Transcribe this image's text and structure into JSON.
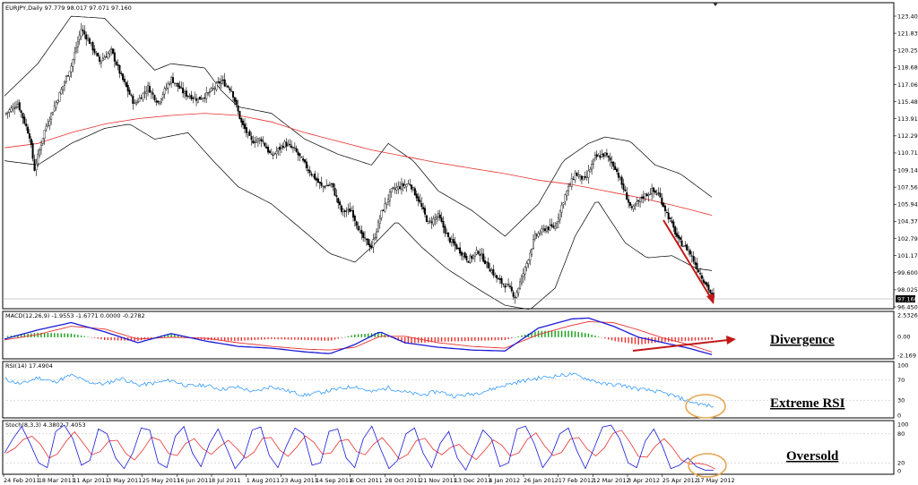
{
  "chart_data": {
    "type": "candlestick",
    "window_title": "EURJPY,Daily  97.779 98.017 97.071 97.160",
    "current_price_label": "97.160",
    "price_axis_ticks": [
      "123.405",
      "121.830",
      "120.255",
      "118.680",
      "117.060",
      "115.485",
      "113.910",
      "112.290",
      "110.715",
      "109.140",
      "107.565",
      "105.945",
      "104.370",
      "102.795",
      "101.175",
      "99.600",
      "98.025",
      "96.450"
    ],
    "price_range": [
      96.45,
      123.405
    ],
    "x_ticks": [
      "24 Feb 2011",
      "18 Mar 2011",
      "11 Apr 2011",
      "3 May 2011",
      "25 May 2011",
      "16 Jun 2011",
      "8 Jul 2011",
      "1 Aug 2011",
      "23 Aug 2011",
      "14 Sep 2011",
      "6 Oct 2011",
      "28 Oct 2011",
      "21 Nov 2011",
      "13 Dec 2011",
      "4 Jan 2012",
      "26 Jan 2012",
      "17 Feb 2012",
      "12 Mar 2012",
      "3 Apr 2012",
      "25 Apr 2012",
      "17 May 2012"
    ],
    "close_path": [
      [
        0,
        114.3
      ],
      [
        8,
        115.3
      ],
      [
        15,
        112.3
      ],
      [
        18,
        109.2
      ],
      [
        24,
        112.8
      ],
      [
        32,
        115.8
      ],
      [
        40,
        118.8
      ],
      [
        46,
        122.2
      ],
      [
        51,
        121.0
      ],
      [
        57,
        119.2
      ],
      [
        64,
        120.2
      ],
      [
        70,
        117.8
      ],
      [
        78,
        115.2
      ],
      [
        86,
        116.8
      ],
      [
        92,
        115.4
      ],
      [
        100,
        117.6
      ],
      [
        108,
        116.2
      ],
      [
        116,
        115.7
      ],
      [
        122,
        116.2
      ],
      [
        130,
        117.4
      ],
      [
        136,
        116.6
      ],
      [
        142,
        113.5
      ],
      [
        148,
        111.8
      ],
      [
        154,
        112.0
      ],
      [
        160,
        110.4
      ],
      [
        168,
        111.6
      ],
      [
        174,
        111.0
      ],
      [
        182,
        109.2
      ],
      [
        190,
        107.6
      ],
      [
        196,
        107.8
      ],
      [
        202,
        105.3
      ],
      [
        208,
        105.4
      ],
      [
        214,
        103.0
      ],
      [
        220,
        102.0
      ],
      [
        226,
        105.2
      ],
      [
        232,
        107.2
      ],
      [
        237,
        107.6
      ],
      [
        243,
        107.9
      ],
      [
        248,
        106.4
      ],
      [
        254,
        104.2
      ],
      [
        260,
        104.9
      ],
      [
        266,
        102.8
      ],
      [
        272,
        101.8
      ],
      [
        278,
        100.8
      ],
      [
        284,
        101.6
      ],
      [
        290,
        100.2
      ],
      [
        296,
        98.9
      ],
      [
        302,
        98.3
      ],
      [
        306,
        97.4
      ],
      [
        312,
        100.0
      ],
      [
        318,
        103.0
      ],
      [
        324,
        103.7
      ],
      [
        330,
        103.9
      ],
      [
        336,
        106.8
      ],
      [
        342,
        108.8
      ],
      [
        348,
        108.2
      ],
      [
        354,
        110.3
      ],
      [
        360,
        110.6
      ],
      [
        366,
        109.4
      ],
      [
        372,
        107.0
      ],
      [
        376,
        105.4
      ],
      [
        382,
        106.6
      ],
      [
        388,
        107.2
      ],
      [
        392,
        106.9
      ],
      [
        398,
        104.8
      ],
      [
        404,
        102.6
      ],
      [
        410,
        101.7
      ],
      [
        416,
        99.8
      ],
      [
        421,
        98.4
      ],
      [
        425,
        97.16
      ]
    ],
    "sma_path": [
      [
        0,
        111.2
      ],
      [
        20,
        111.6
      ],
      [
        40,
        112.6
      ],
      [
        60,
        113.4
      ],
      [
        80,
        113.9
      ],
      [
        100,
        114.2
      ],
      [
        120,
        114.4
      ],
      [
        140,
        114.2
      ],
      [
        160,
        113.6
      ],
      [
        180,
        112.6
      ],
      [
        200,
        111.8
      ],
      [
        220,
        111.0
      ],
      [
        240,
        110.4
      ],
      [
        260,
        109.8
      ],
      [
        280,
        109.3
      ],
      [
        300,
        108.8
      ],
      [
        320,
        108.2
      ],
      [
        340,
        107.8
      ],
      [
        360,
        107.2
      ],
      [
        380,
        106.6
      ],
      [
        400,
        105.9
      ],
      [
        425,
        104.9
      ]
    ],
    "bb_upper": [
      [
        0,
        116.0
      ],
      [
        20,
        119.0
      ],
      [
        40,
        123.4
      ],
      [
        60,
        123.2
      ],
      [
        80,
        120.0
      ],
      [
        90,
        118.4
      ],
      [
        100,
        119.0
      ],
      [
        120,
        118.6
      ],
      [
        130,
        116.5
      ],
      [
        140,
        115.0
      ],
      [
        160,
        114.4
      ],
      [
        180,
        112.0
      ],
      [
        200,
        110.6
      ],
      [
        220,
        109.6
      ],
      [
        230,
        111.6
      ],
      [
        245,
        110.0
      ],
      [
        260,
        107.2
      ],
      [
        280,
        105.4
      ],
      [
        300,
        103.0
      ],
      [
        320,
        106.0
      ],
      [
        335,
        110.0
      ],
      [
        350,
        111.6
      ],
      [
        360,
        112.2
      ],
      [
        375,
        111.8
      ],
      [
        390,
        109.6
      ],
      [
        405,
        108.8
      ],
      [
        425,
        106.5
      ]
    ],
    "bb_lower": [
      [
        0,
        110.0
      ],
      [
        20,
        109.6
      ],
      [
        40,
        111.6
      ],
      [
        60,
        113.0
      ],
      [
        75,
        113.4
      ],
      [
        90,
        112.0
      ],
      [
        110,
        112.6
      ],
      [
        125,
        110.0
      ],
      [
        140,
        107.6
      ],
      [
        160,
        106.0
      ],
      [
        180,
        103.4
      ],
      [
        195,
        101.4
      ],
      [
        210,
        100.6
      ],
      [
        220,
        102.0
      ],
      [
        235,
        104.4
      ],
      [
        250,
        102.0
      ],
      [
        265,
        100.0
      ],
      [
        285,
        98.0
      ],
      [
        300,
        96.6
      ],
      [
        315,
        96.2
      ],
      [
        330,
        98.2
      ],
      [
        342,
        103.0
      ],
      [
        355,
        106.4
      ],
      [
        372,
        102.4
      ],
      [
        385,
        101.0
      ],
      [
        400,
        101.2
      ],
      [
        415,
        100.0
      ],
      [
        425,
        99.8
      ]
    ],
    "macd": {
      "label": "MACD(12,26,9) -1.9553 -1.6771 0.0000 -0.2782",
      "ticks": [
        "2.5326",
        "0.00",
        "-2.169"
      ],
      "range": [
        -2.169,
        2.5326
      ],
      "macd_path": [
        [
          0,
          -0.2
        ],
        [
          20,
          0.8
        ],
        [
          40,
          1.6
        ],
        [
          60,
          0.6
        ],
        [
          80,
          -0.6
        ],
        [
          100,
          0.4
        ],
        [
          120,
          -0.4
        ],
        [
          140,
          -1.0
        ],
        [
          160,
          -1.2
        ],
        [
          180,
          -1.6
        ],
        [
          195,
          -1.8
        ],
        [
          210,
          -0.8
        ],
        [
          225,
          0.6
        ],
        [
          240,
          -0.6
        ],
        [
          260,
          -1.1
        ],
        [
          280,
          -1.4
        ],
        [
          300,
          -1.5
        ],
        [
          320,
          1.0
        ],
        [
          340,
          2.0
        ],
        [
          350,
          2.1
        ],
        [
          365,
          1.2
        ],
        [
          380,
          0.0
        ],
        [
          395,
          -0.6
        ],
        [
          410,
          -1.2
        ],
        [
          425,
          -1.95
        ]
      ],
      "signal_path": [
        [
          0,
          -0.3
        ],
        [
          20,
          0.3
        ],
        [
          40,
          1.2
        ],
        [
          60,
          0.9
        ],
        [
          80,
          -0.2
        ],
        [
          100,
          0.0
        ],
        [
          120,
          -0.1
        ],
        [
          140,
          -0.6
        ],
        [
          160,
          -1.0
        ],
        [
          180,
          -1.3
        ],
        [
          195,
          -1.4
        ],
        [
          210,
          -1.1
        ],
        [
          225,
          0.1
        ],
        [
          240,
          0.1
        ],
        [
          260,
          -0.6
        ],
        [
          280,
          -1.0
        ],
        [
          300,
          -1.2
        ],
        [
          320,
          0.3
        ],
        [
          340,
          1.3
        ],
        [
          350,
          1.7
        ],
        [
          365,
          1.6
        ],
        [
          380,
          0.8
        ],
        [
          395,
          -0.1
        ],
        [
          410,
          -0.8
        ],
        [
          425,
          -1.68
        ]
      ]
    },
    "rsi": {
      "label": "RSI(14) 17.4904",
      "ticks": [
        "100",
        "70",
        "30",
        "0"
      ],
      "range": [
        0,
        100
      ],
      "path": [
        [
          0,
          72
        ],
        [
          10,
          62
        ],
        [
          20,
          75
        ],
        [
          30,
          66
        ],
        [
          40,
          80
        ],
        [
          50,
          66
        ],
        [
          60,
          62
        ],
        [
          70,
          74
        ],
        [
          80,
          60
        ],
        [
          90,
          64
        ],
        [
          100,
          70
        ],
        [
          110,
          58
        ],
        [
          120,
          60
        ],
        [
          130,
          52
        ],
        [
          140,
          56
        ],
        [
          150,
          46
        ],
        [
          160,
          58
        ],
        [
          170,
          48
        ],
        [
          180,
          40
        ],
        [
          190,
          46
        ],
        [
          200,
          52
        ],
        [
          210,
          58
        ],
        [
          220,
          46
        ],
        [
          230,
          55
        ],
        [
          240,
          46
        ],
        [
          250,
          40
        ],
        [
          260,
          48
        ],
        [
          270,
          38
        ],
        [
          280,
          42
        ],
        [
          290,
          50
        ],
        [
          300,
          60
        ],
        [
          310,
          68
        ],
        [
          320,
          74
        ],
        [
          330,
          78
        ],
        [
          340,
          82
        ],
        [
          350,
          72
        ],
        [
          360,
          62
        ],
        [
          370,
          60
        ],
        [
          380,
          52
        ],
        [
          390,
          48
        ],
        [
          400,
          40
        ],
        [
          410,
          28
        ],
        [
          420,
          20
        ],
        [
          425,
          17.5
        ]
      ]
    },
    "stoch": {
      "label": "Stoch(8,3,3) 4.3802 7.4053",
      "ticks": [
        "100",
        "80",
        "20",
        "0"
      ],
      "range": [
        0,
        100
      ],
      "values": [
        40,
        70,
        95,
        60,
        20,
        10,
        85,
        98,
        70,
        15,
        25,
        90,
        80,
        30,
        8,
        40,
        92,
        88,
        20,
        10,
        75,
        95,
        40,
        12,
        60,
        90,
        50,
        8,
        30,
        88,
        94,
        35,
        10,
        55,
        92,
        80,
        15,
        20,
        85,
        90,
        30,
        10,
        70,
        96,
        50,
        8,
        25,
        80,
        92,
        40,
        10,
        60,
        85,
        30,
        5,
        45,
        88,
        70,
        12,
        20,
        90,
        96,
        60,
        10,
        35,
        80,
        92,
        45,
        8,
        50,
        94,
        98,
        70,
        20,
        10,
        65,
        90,
        55,
        8,
        15,
        30,
        12,
        5,
        4.38
      ]
    },
    "annotations": [
      "Divergence",
      "Extreme RSI",
      "Oversold"
    ]
  },
  "colors": {
    "candle_body": "#000000",
    "sma": "#e8322f",
    "bands": "#000000",
    "macd_line": "#1a1ad8",
    "signal_line": "#e8322f",
    "hist_up": "#14a014",
    "hist_down": "#e8322f",
    "rsi": "#1e90ff",
    "stoch_k": "#1a1ad8",
    "stoch_d": "#e8322f",
    "annotation_arrow": "#c21818",
    "circle": "#e7a64e"
  }
}
